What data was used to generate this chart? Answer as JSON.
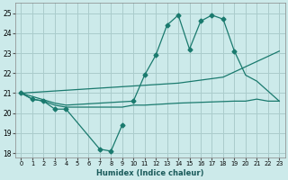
{
  "xlabel": "Humidex (Indice chaleur)",
  "bg_color": "#cceaea",
  "grid_color": "#aacccc",
  "line_color": "#1a7a6e",
  "ylim": [
    17.8,
    25.5
  ],
  "xlim": [
    -0.5,
    23.5
  ],
  "yticks": [
    18,
    19,
    20,
    21,
    22,
    23,
    24,
    25
  ],
  "xticks": [
    0,
    1,
    2,
    3,
    4,
    5,
    6,
    7,
    8,
    9,
    10,
    11,
    12,
    13,
    14,
    15,
    16,
    17,
    18,
    19,
    20,
    21,
    22,
    23
  ],
  "line_low": {
    "x": [
      0,
      1,
      2,
      3,
      4,
      7,
      8,
      9
    ],
    "y": [
      21.0,
      20.7,
      20.6,
      20.2,
      20.2,
      18.2,
      18.1,
      19.4
    ]
  },
  "line_mid_low": {
    "x": [
      0,
      1,
      2,
      3,
      4,
      9,
      10,
      11,
      14,
      19,
      20,
      21,
      22,
      23
    ],
    "y": [
      21.0,
      20.7,
      20.6,
      20.4,
      20.3,
      20.3,
      20.4,
      20.4,
      20.5,
      20.6,
      20.6,
      20.7,
      20.6,
      20.6
    ]
  },
  "line_trend_high": {
    "x": [
      0,
      14,
      18,
      23
    ],
    "y": [
      21.0,
      21.5,
      21.8,
      23.1
    ]
  },
  "line_peaks": {
    "x": [
      0,
      3,
      4,
      10,
      11,
      12,
      13,
      14,
      15,
      16,
      17,
      18,
      19,
      20,
      21,
      22,
      23
    ],
    "y": [
      21.0,
      20.5,
      20.4,
      20.6,
      21.9,
      22.9,
      24.4,
      24.9,
      23.2,
      24.6,
      24.9,
      24.7,
      23.1,
      21.9,
      21.6,
      21.1,
      20.6
    ]
  },
  "markers_low": {
    "x": [
      0,
      1,
      2,
      3,
      4,
      7,
      8,
      9
    ],
    "y": [
      21.0,
      20.7,
      20.6,
      20.2,
      20.2,
      18.2,
      18.1,
      19.4
    ]
  },
  "markers_peaks": {
    "x": [
      10,
      11,
      12,
      13,
      14,
      15,
      16,
      17,
      18,
      19
    ],
    "y": [
      20.6,
      21.9,
      22.9,
      24.4,
      24.9,
      23.2,
      24.6,
      24.9,
      24.7,
      23.1
    ]
  }
}
